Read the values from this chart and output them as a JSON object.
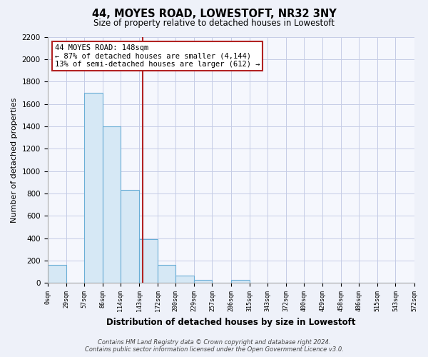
{
  "title": "44, MOYES ROAD, LOWESTOFT, NR32 3NY",
  "subtitle": "Size of property relative to detached houses in Lowestoft",
  "xlabel": "Distribution of detached houses by size in Lowestoft",
  "ylabel": "Number of detached properties",
  "bar_edges": [
    0,
    29,
    57,
    86,
    114,
    143,
    172,
    200,
    229,
    257,
    286,
    315,
    343,
    372,
    400,
    429,
    458,
    486,
    515,
    543,
    572
  ],
  "bar_heights": [
    160,
    0,
    1700,
    1400,
    830,
    390,
    165,
    65,
    30,
    0,
    30,
    0,
    0,
    0,
    0,
    0,
    0,
    0,
    0,
    0
  ],
  "bar_color": "#d6e8f5",
  "bar_edge_color": "#6aaed6",
  "vline_x": 148,
  "vline_color": "#b22222",
  "annotation_title": "44 MOYES ROAD: 148sqm",
  "annotation_line1": "← 87% of detached houses are smaller (4,144)",
  "annotation_line2": "13% of semi-detached houses are larger (612) →",
  "annotation_box_facecolor": "#ffffff",
  "annotation_box_edgecolor": "#b22222",
  "tick_labels": [
    "0sqm",
    "29sqm",
    "57sqm",
    "86sqm",
    "114sqm",
    "143sqm",
    "172sqm",
    "200sqm",
    "229sqm",
    "257sqm",
    "286sqm",
    "315sqm",
    "343sqm",
    "372sqm",
    "400sqm",
    "429sqm",
    "458sqm",
    "486sqm",
    "515sqm",
    "543sqm",
    "572sqm"
  ],
  "ylim": [
    0,
    2200
  ],
  "yticks": [
    0,
    200,
    400,
    600,
    800,
    1000,
    1200,
    1400,
    1600,
    1800,
    2000,
    2200
  ],
  "footer_line1": "Contains HM Land Registry data © Crown copyright and database right 2024.",
  "footer_line2": "Contains public sector information licensed under the Open Government Licence v3.0.",
  "background_color": "#eef1f9",
  "plot_bg_color": "#f5f7fd",
  "grid_color": "#c5cce6"
}
